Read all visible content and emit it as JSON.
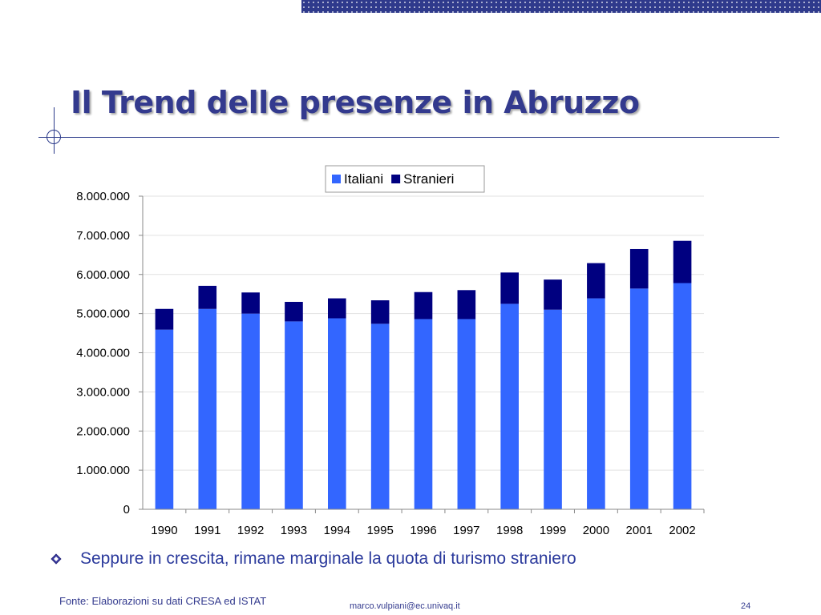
{
  "slide": {
    "title": "Il Trend delle presenze in Abruzzo",
    "bullet": "Seppure in crescita, rimane marginale la quota di turismo straniero",
    "footer_source": "Fonte: Elaborazioni su dati CRESA ed ISTAT",
    "footer_email": "marco.vulpiani@ec.univaq.it",
    "page_number": "24"
  },
  "colors": {
    "theme": "#333a8e",
    "italiani": "#3366ff",
    "stranieri": "#000080"
  },
  "icons": {
    "bullet": "diamond-bullet-icon",
    "title_rule": "circle-crosshair-ornament"
  },
  "chart_data": {
    "type": "bar",
    "stacked": true,
    "categories": [
      "1990",
      "1991",
      "1992",
      "1993",
      "1994",
      "1995",
      "1996",
      "1997",
      "1998",
      "1999",
      "2000",
      "2001",
      "2002"
    ],
    "series": [
      {
        "name": "Italiani",
        "color": "#3366ff",
        "values": [
          4590000,
          5120000,
          5000000,
          4800000,
          4880000,
          4740000,
          4860000,
          4860000,
          5250000,
          5100000,
          5390000,
          5640000,
          5780000
        ]
      },
      {
        "name": "Stranieri",
        "color": "#000080",
        "values": [
          530000,
          590000,
          540000,
          500000,
          510000,
          600000,
          690000,
          740000,
          800000,
          770000,
          900000,
          1010000,
          1080000
        ]
      }
    ],
    "ylim": [
      0,
      8000000
    ],
    "yticks": [
      "0",
      "1.000.000",
      "2.000.000",
      "3.000.000",
      "4.000.000",
      "5.000.000",
      "6.000.000",
      "7.000.000",
      "8.000.000"
    ],
    "grid": true,
    "legend": "top-center"
  }
}
